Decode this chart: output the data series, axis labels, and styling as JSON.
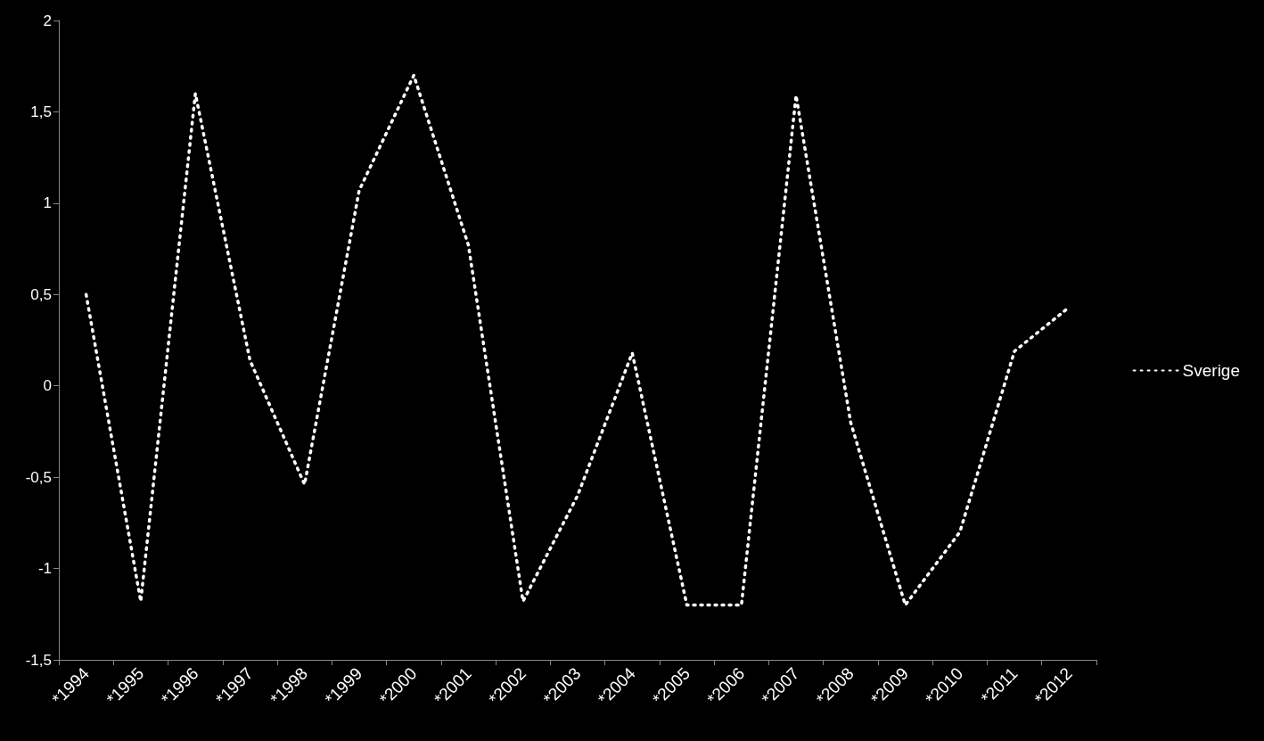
{
  "chart_data": {
    "type": "line",
    "categories": [
      "*1994",
      "*1995",
      "*1996",
      "*1997",
      "*1998",
      "*1999",
      "*2000",
      "*2001",
      "*2002",
      "*2003",
      "*2004",
      "*2005",
      "*2006",
      "*2007",
      "*2008",
      "*2009",
      "*2010",
      "*2011",
      "*2012"
    ],
    "series": [
      {
        "name": "Sverige",
        "color": "#ffffff",
        "values": [
          0.5,
          -1.18,
          1.6,
          0.14,
          -0.54,
          1.07,
          1.7,
          0.77,
          -1.18,
          -0.6,
          0.18,
          -1.2,
          -1.2,
          1.59,
          -0.2,
          -1.2,
          -0.8,
          0.19,
          0.43
        ]
      }
    ],
    "ylim": [
      -1.5,
      2
    ],
    "yticks": [
      {
        "value": -1.5,
        "label": "-1,5"
      },
      -1,
      {
        "value": -0.5,
        "label": "-0,5"
      },
      0,
      {
        "value": 0.5,
        "label": "0,5"
      },
      1,
      {
        "value": 1.5,
        "label": "1,5"
      },
      2
    ],
    "grid": false,
    "legend": "right",
    "marker": "none",
    "line_style": "dotted"
  }
}
